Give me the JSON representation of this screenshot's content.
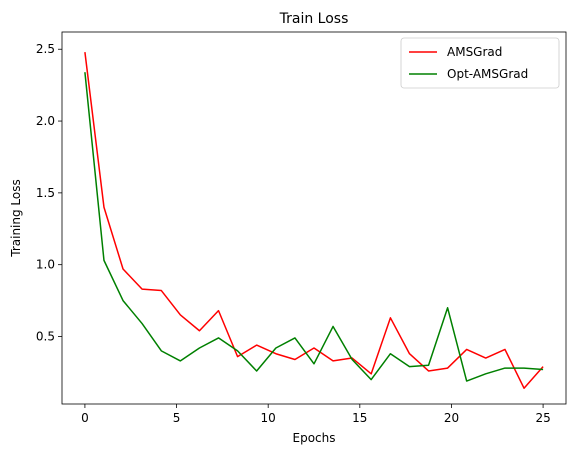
{
  "chart_data": {
    "type": "line",
    "title": "Train Loss",
    "xlabel": "Epochs",
    "ylabel": "Training Loss",
    "xlim": [
      -1.25,
      26.25
    ],
    "ylim": [
      0.03,
      2.62
    ],
    "xticks": [
      0,
      5,
      10,
      15,
      20,
      25
    ],
    "yticks": [
      0.5,
      1.0,
      1.5,
      2.0,
      2.5
    ],
    "xtick_labels": [
      "0",
      "5",
      "10",
      "15",
      "20",
      "25"
    ],
    "ytick_labels": [
      "0.5",
      "1.0",
      "1.5",
      "2.0",
      "2.5"
    ],
    "grid": false,
    "legend_position": "top-right",
    "x": [
      0,
      1.04,
      2.08,
      3.12,
      4.17,
      5.21,
      6.25,
      7.29,
      8.33,
      9.37,
      10.42,
      11.46,
      12.5,
      13.54,
      14.58,
      15.62,
      16.67,
      17.71,
      18.75,
      19.79,
      20.83,
      21.87,
      22.92,
      23.96,
      25
    ],
    "series": [
      {
        "name": "AMSGrad",
        "color": "#ff0000",
        "values": [
          2.48,
          1.4,
          0.97,
          0.83,
          0.82,
          0.65,
          0.54,
          0.68,
          0.36,
          0.44,
          0.38,
          0.34,
          0.42,
          0.33,
          0.35,
          0.24,
          0.63,
          0.38,
          0.26,
          0.28,
          0.41,
          0.35,
          0.41,
          0.14,
          0.29
        ]
      },
      {
        "name": "Opt-AMSGrad",
        "color": "#008000",
        "values": [
          2.34,
          1.03,
          0.75,
          0.59,
          0.4,
          0.33,
          0.42,
          0.49,
          0.4,
          0.26,
          0.42,
          0.49,
          0.31,
          0.57,
          0.34,
          0.2,
          0.38,
          0.29,
          0.3,
          0.7,
          0.19,
          0.24,
          0.28,
          0.28,
          0.27
        ]
      }
    ]
  }
}
